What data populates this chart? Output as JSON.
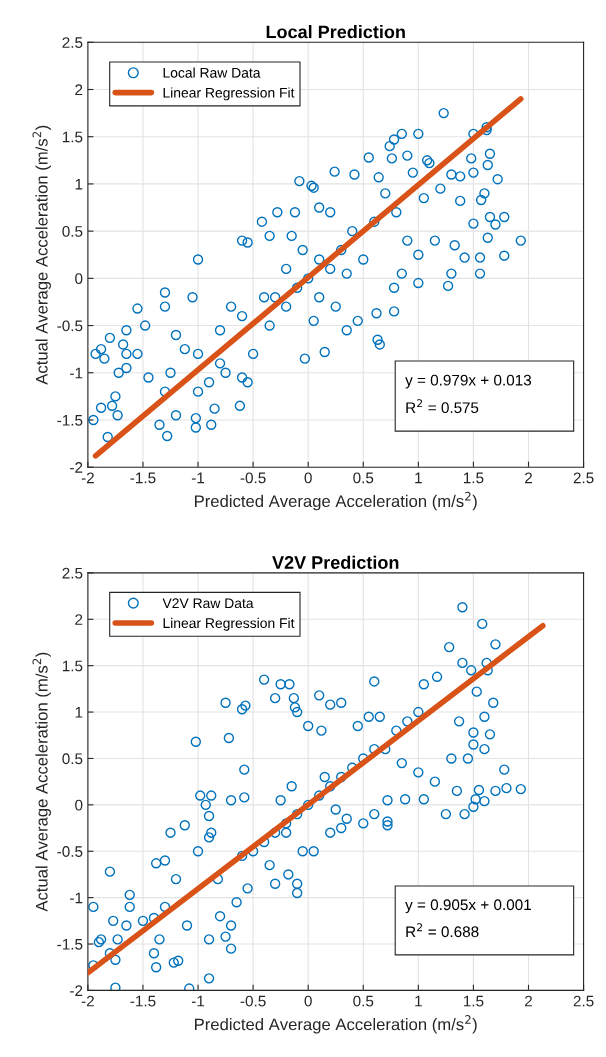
{
  "chart_data": [
    {
      "type": "scatter",
      "title": "Local Prediction",
      "xlabel": "Predicted Average Acceleration (m/s$^{2}$)",
      "ylabel": "Actual Average Acceleration (m/s$^{2}$)",
      "xlim": [
        -2,
        2.5
      ],
      "ylim": [
        -2,
        2.5
      ],
      "xticks": [
        -2,
        -1.5,
        -1,
        -0.5,
        0,
        0.5,
        1,
        1.5,
        2,
        2.5
      ],
      "yticks": [
        -2,
        -1.5,
        -1,
        -0.5,
        0,
        0.5,
        1,
        1.5,
        2,
        2.5
      ],
      "grid": true,
      "legend": "top left",
      "annotations": [
        "y = 0.979x + 0.013",
        "R$^{2}$ = 0.575"
      ],
      "series": [
        {
          "name": "Local Raw Data",
          "marker": "circle",
          "color": "#0072bd",
          "x": [
            1.23,
            1.62,
            1.62,
            1.5,
            1.0,
            0.85,
            0.78,
            0.74,
            0.76,
            0.9,
            0.55,
            1.08,
            1.1,
            1.48,
            1.65,
            1.63,
            1.5,
            0.24,
            0.42,
            0.64,
            0.95,
            1.72,
            -0.08,
            0.03,
            0.05,
            1.3,
            1.38,
            1.2,
            1.6,
            1.57,
            1.38,
            1.05,
            0.7,
            0.2,
            0.1,
            -0.28,
            -0.12,
            -0.35,
            -0.6,
            -0.55,
            -1.0,
            -0.42,
            1.5,
            1.65,
            1.78,
            1.7,
            1.93,
            1.78,
            1.56,
            1.56,
            1.63,
            1.33,
            1.42,
            1.3,
            1.27,
            1.0,
            1.0,
            1.15,
            0.85,
            0.78,
            0.78,
            0.62,
            0.63,
            0.65,
            0.45,
            0.35,
            0.15,
            -0.03,
            -0.5,
            -0.6,
            -0.55,
            -0.62,
            -0.88,
            -1.02,
            -1.02,
            -1.28,
            -1.35,
            -1.2,
            -0.85,
            -1.0,
            -1.3,
            -1.45,
            -1.25,
            -1.55,
            -1.48,
            -1.55,
            -1.3,
            -1.3,
            -1.05,
            -1.12,
            -0.8,
            -0.8,
            -0.75,
            -0.9,
            -1.65,
            -1.72,
            -1.8,
            -1.88,
            -1.93,
            -1.85,
            -1.68,
            -1.65,
            -1.65,
            -1.75,
            -1.78,
            -1.73,
            -1.88,
            -1.95,
            -1.82,
            -0.3,
            -0.2,
            -0.1,
            0,
            0.1,
            0.1,
            0.2,
            0.3,
            -0.2,
            -0.4,
            0.25,
            -0.05,
            0.4,
            0.5,
            0.6,
            -0.6,
            0.8,
            0.9,
            -0.7,
            -1.0,
            -1.2,
            0.35,
            -0.15,
            0.05,
            -0.35
          ],
          "values": [
            1.75,
            1.6,
            1.57,
            1.53,
            1.53,
            1.53,
            1.47,
            1.4,
            1.27,
            1.3,
            1.28,
            1.25,
            1.22,
            1.27,
            1.32,
            1.2,
            1.12,
            1.13,
            1.1,
            1.07,
            1.12,
            1.05,
            1.03,
            0.98,
            0.96,
            1.1,
            1.08,
            0.95,
            0.9,
            0.83,
            0.82,
            0.85,
            0.9,
            0.7,
            0.75,
            0.7,
            0.7,
            0.45,
            0.4,
            0.38,
            0.2,
            0.6,
            0.58,
            0.65,
            0.65,
            0.57,
            0.4,
            0.24,
            0.22,
            0.05,
            0.43,
            0.35,
            0.22,
            0.05,
            -0.08,
            0.25,
            -0.05,
            0.4,
            0.05,
            -0.1,
            -0.35,
            -0.37,
            -0.65,
            -0.7,
            -0.45,
            -0.55,
            -0.78,
            -0.85,
            -0.8,
            -1.05,
            -1.1,
            -1.35,
            -1.55,
            -1.58,
            -1.48,
            -1.67,
            -1.55,
            -1.45,
            -1.38,
            -1.2,
            -1.2,
            -1.05,
            -1.0,
            -0.8,
            -0.5,
            -0.32,
            -0.15,
            -0.3,
            -0.2,
            -0.75,
            -0.55,
            -0.9,
            -1.0,
            -1.1,
            -0.95,
            -1.0,
            -0.63,
            -0.75,
            -0.8,
            -0.85,
            -0.7,
            -0.55,
            -0.8,
            -1.25,
            -1.35,
            -1.45,
            -1.37,
            -1.5,
            -1.68,
            -0.2,
            0.1,
            -0.1,
            0,
            0.2,
            -0.2,
            0.1,
            0.3,
            -0.3,
            -0.2,
            -0.3,
            0.3,
            0.5,
            0.2,
            0.6,
            -0.4,
            0.7,
            0.4,
            -0.3,
            -0.8,
            -0.6,
            0.05,
            0.45,
            -0.45,
            -0.5
          ]
        },
        {
          "name": "Linear Regression Fit",
          "type": "line",
          "marker": "none",
          "line_style": "solid",
          "color": "#d95319",
          "x": [
            -1.93,
            1.93
          ],
          "values": [
            -1.88,
            1.9
          ]
        }
      ]
    },
    {
      "type": "scatter",
      "title": "V2V Prediction",
      "xlabel": "Predicted Average Acceleration (m/s$^{2}$)",
      "ylabel": "Actual Average Acceleration (m/s$^{2}$)",
      "xlim": [
        -2,
        2.5
      ],
      "ylim": [
        -2,
        2.5
      ],
      "xticks": [
        -2,
        -1.5,
        -1,
        -0.5,
        0,
        0.5,
        1,
        1.5,
        2,
        2.5
      ],
      "yticks": [
        -2,
        -1.5,
        -1,
        -0.5,
        0,
        0.5,
        1,
        1.5,
        2,
        2.5
      ],
      "grid": true,
      "legend": "top left",
      "annotations": [
        "y = 0.905x + 0.001",
        "R$^{2}$ = 0.688"
      ],
      "series": [
        {
          "name": "V2V Raw Data",
          "marker": "circle",
          "color": "#0072bd",
          "x": [
            1.4,
            1.58,
            1.7,
            1.28,
            1.4,
            1.62,
            1.63,
            1.48,
            0.6,
            -0.4,
            -0.25,
            -0.17,
            -0.3,
            -0.13,
            -0.12,
            -0.1,
            0.1,
            0.2,
            0.3,
            -0.75,
            -0.6,
            -0.57,
            0.0,
            0.12,
            -1.02,
            -0.72,
            -0.58,
            1.17,
            1.05,
            1.53,
            1.68,
            1.6,
            1.5,
            1.65,
            1.37,
            1.5,
            1.6,
            1.45,
            1.3,
            1.78,
            1.93,
            1.8,
            1.7,
            1.55,
            1.35,
            1.52,
            1.6,
            1.5,
            1.42,
            1.25,
            1.05,
            0.88,
            0.72,
            0.6,
            0.5,
            0.72,
            0.72,
            0.35,
            0.3,
            0.2,
            -0.2,
            -0.05,
            0.05,
            -0.35,
            -0.3,
            -0.18,
            -0.1,
            -0.1,
            -0.55,
            -0.82,
            -1.12,
            -1.25,
            -0.98,
            -0.88,
            -0.93,
            -0.9,
            -0.88,
            -0.9,
            -0.7,
            -0.58,
            -1.3,
            -1.38,
            -1.0,
            -1.2,
            -0.8,
            -1.1,
            -0.65,
            -0.7,
            -0.9,
            -0.75,
            -0.7,
            -0.9,
            -1.08,
            -1.3,
            -1.4,
            -1.4,
            -1.38,
            -1.22,
            -1.18,
            -1.35,
            -1.62,
            -1.62,
            -1.8,
            -1.77,
            -1.65,
            -1.95,
            -1.9,
            -1.88,
            -1.8,
            -1.75,
            -1.73,
            -1.95,
            -1.75,
            -1.5,
            0,
            0.1,
            -0.1,
            0.2,
            -0.2,
            0.3,
            -0.3,
            0.4,
            0.5,
            0.6,
            0.7,
            0.8,
            0.9,
            1.0,
            -0.4,
            -0.5,
            -0.6,
            0.15,
            -0.15,
            0.25,
            -0.25,
            0.45,
            0.55,
            0.65,
            0.85,
            1.0,
            1.15
          ],
          "values": [
            2.13,
            1.95,
            1.73,
            1.7,
            1.53,
            1.53,
            1.45,
            1.45,
            1.33,
            1.35,
            1.3,
            1.3,
            1.15,
            1.15,
            1.05,
            1.0,
            1.18,
            1.08,
            1.1,
            1.1,
            1.03,
            1.07,
            0.85,
            0.8,
            0.68,
            0.72,
            0.38,
            1.38,
            1.3,
            1.22,
            1.1,
            0.95,
            0.78,
            0.76,
            0.9,
            0.65,
            0.6,
            0.5,
            0.5,
            0.38,
            0.17,
            0.18,
            0.15,
            0.16,
            0.15,
            0.06,
            0.04,
            -0.02,
            -0.1,
            -0.1,
            0.06,
            0.06,
            0.05,
            -0.1,
            -0.2,
            -0.18,
            -0.22,
            -0.15,
            -0.25,
            -0.3,
            -0.3,
            -0.5,
            -0.5,
            -0.65,
            -0.85,
            -0.75,
            -0.85,
            -0.95,
            -0.9,
            -0.8,
            -0.22,
            -0.3,
            0.1,
            0.1,
            0.0,
            -0.12,
            -0.3,
            -0.35,
            0.05,
            0.08,
            -0.6,
            -0.63,
            -0.5,
            -0.8,
            -1.2,
            -1.3,
            -1.05,
            -1.3,
            -1.45,
            -1.42,
            -1.55,
            -1.87,
            -1.98,
            -1.1,
            -1.22,
            -1.6,
            -1.75,
            -1.7,
            -1.68,
            -1.45,
            -0.97,
            -1.1,
            -0.72,
            -1.25,
            -1.3,
            -1.1,
            -1.48,
            -1.45,
            -1.6,
            -1.67,
            -1.45,
            -1.73,
            -1.97,
            -1.25,
            0,
            0.1,
            -0.1,
            0.2,
            -0.2,
            0.3,
            -0.3,
            0.4,
            0.5,
            0.6,
            0.6,
            0.8,
            0.9,
            1.0,
            -0.4,
            -0.5,
            -0.55,
            0.3,
            0.2,
            -0.05,
            0.05,
            0.85,
            0.95,
            0.95,
            0.45,
            0.35,
            0.25
          ]
        },
        {
          "name": "Linear Regression Fit",
          "type": "line",
          "marker": "none",
          "line_style": "solid",
          "color": "#d95319",
          "x": [
            -2,
            2.13
          ],
          "values": [
            -1.81,
            1.93
          ]
        }
      ]
    }
  ]
}
